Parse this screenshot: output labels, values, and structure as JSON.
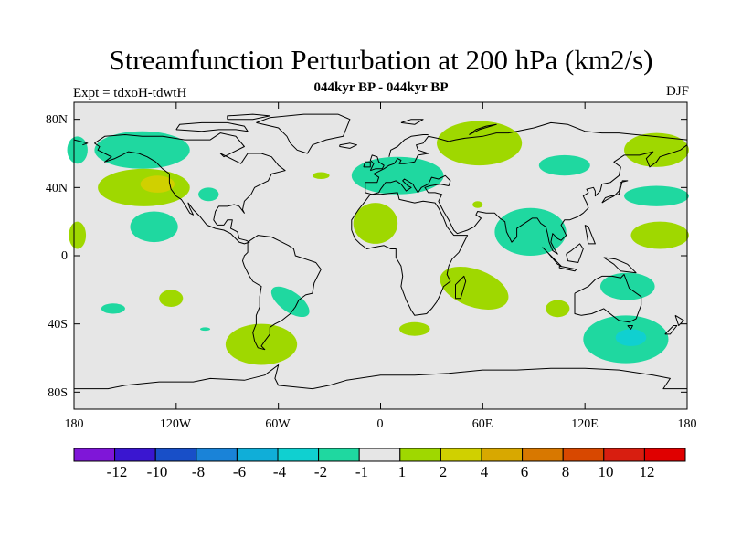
{
  "header": {
    "title": "Streamfunction Perturbation at 200 hPa (km2/s)",
    "subtitle": "044kyr BP - 044kyr BP",
    "left_label": "Expt = tdxoH-tdwtH",
    "right_label": "DJF"
  },
  "map": {
    "projection": "cylindrical-equidistant",
    "lon_range": [
      -180,
      180
    ],
    "lat_range": [
      -90,
      90
    ],
    "background_color": "#e6e6e6",
    "lat_ticks": [
      "80N",
      "40N",
      "0",
      "40S",
      "80S"
    ],
    "lon_ticks": [
      "180",
      "120W",
      "60W",
      "0",
      "60E",
      "120E",
      "180"
    ],
    "anomalies": [
      {
        "lon": -140,
        "lat": 62,
        "rlon": 28,
        "rlat": 11,
        "level": "-1"
      },
      {
        "lon": -178,
        "lat": 62,
        "rlon": 6,
        "rlat": 8,
        "level": "-1"
      },
      {
        "lon": -139,
        "lat": 40,
        "rlon": 27,
        "rlat": 11,
        "level": "1"
      },
      {
        "lon": -131,
        "lat": 42,
        "rlon": 10,
        "rlat": 5,
        "level": "2"
      },
      {
        "lon": -133,
        "lat": 17,
        "rlon": 14,
        "rlat": 9,
        "level": "-1"
      },
      {
        "lon": -178,
        "lat": 12,
        "rlon": 5,
        "rlat": 8,
        "level": "1"
      },
      {
        "lon": -101,
        "lat": 36,
        "rlon": 6,
        "rlat": 4,
        "level": "-1"
      },
      {
        "lon": -123,
        "lat": -25,
        "rlon": 7,
        "rlat": 5,
        "level": "1"
      },
      {
        "lon": -157,
        "lat": -31,
        "rlon": 7,
        "rlat": 3,
        "level": "-1"
      },
      {
        "lon": -103,
        "lat": -43,
        "rlon": 3,
        "rlat": 1,
        "level": "-1"
      },
      {
        "lon": -70,
        "lat": -52,
        "rlon": 21,
        "rlat": 12,
        "level": "1"
      },
      {
        "lon": -53,
        "lat": -27,
        "rlon": 13,
        "rlat": 6,
        "level": "-1",
        "rot": 35
      },
      {
        "lon": -35,
        "lat": 47,
        "rlon": 5,
        "rlat": 2,
        "level": "1"
      },
      {
        "lon": 10,
        "lat": 47,
        "rlon": 27,
        "rlat": 11,
        "level": "-1"
      },
      {
        "lon": -3,
        "lat": 19,
        "rlon": 13,
        "rlat": 12,
        "level": "1"
      },
      {
        "lon": 58,
        "lat": 66,
        "rlon": 25,
        "rlat": 13,
        "level": "1"
      },
      {
        "lon": 108,
        "lat": 53,
        "rlon": 15,
        "rlat": 6,
        "level": "-1"
      },
      {
        "lon": 162,
        "lat": 62,
        "rlon": 19,
        "rlat": 10,
        "level": "1"
      },
      {
        "lon": 162,
        "lat": 35,
        "rlon": 19,
        "rlat": 6,
        "level": "-1"
      },
      {
        "lon": 88,
        "lat": 14,
        "rlon": 21,
        "rlat": 14,
        "level": "-1"
      },
      {
        "lon": 164,
        "lat": 12,
        "rlon": 17,
        "rlat": 8,
        "level": "1"
      },
      {
        "lon": 55,
        "lat": -19,
        "rlon": 21,
        "rlat": 11,
        "level": "1",
        "rot": 20
      },
      {
        "lon": 104,
        "lat": -31,
        "rlon": 7,
        "rlat": 5,
        "level": "1"
      },
      {
        "lon": 145,
        "lat": -18,
        "rlon": 16,
        "rlat": 8,
        "level": "-1"
      },
      {
        "lon": 144,
        "lat": -49,
        "rlon": 25,
        "rlat": 14,
        "level": "-1"
      },
      {
        "lon": 147,
        "lat": -48,
        "rlon": 9,
        "rlat": 5,
        "level": "-2"
      },
      {
        "lon": 20,
        "lat": -43,
        "rlon": 9,
        "rlat": 4,
        "level": "1"
      },
      {
        "lon": 57,
        "lat": 30,
        "rlon": 3,
        "rlat": 2,
        "level": "1"
      }
    ]
  },
  "colorbar": {
    "colors": [
      "#7f16d8",
      "#3a16d0",
      "#184fc8",
      "#1a83d8",
      "#10aed8",
      "#10d0d0",
      "#1fd8a0",
      "#e6e6e6",
      "#9fd800",
      "#d0d000",
      "#d8a800",
      "#d87800",
      "#d84800",
      "#d81e10",
      "#e00000"
    ],
    "labels": [
      "-12",
      "-10",
      "-8",
      "-6",
      "-4",
      "-2",
      "-1",
      "1",
      "2",
      "4",
      "6",
      "8",
      "10",
      "12"
    ]
  },
  "level_colors": {
    "-2": "#10d0d0",
    "-1": "#1fd8a0",
    "1": "#9fd800",
    "2": "#d0d000"
  }
}
